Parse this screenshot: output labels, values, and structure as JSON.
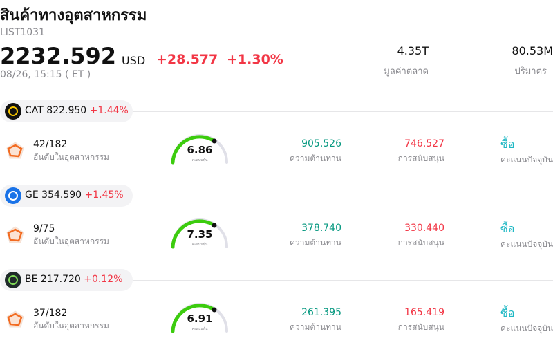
{
  "header": {
    "title": "สินค้าทางอุตสาหกรรม",
    "code": "LIST1031",
    "price": "2232.592",
    "currency": "USD",
    "change": "+28.577",
    "change_pct": "+1.30%",
    "time": "08/26, 15:15 ( ET )"
  },
  "stats": [
    {
      "value": "4.35T",
      "label": "มูลค่าตลาด"
    },
    {
      "value": "80.53M",
      "label": "ปริมาตร"
    }
  ],
  "stocks": [
    {
      "ticker": "CAT",
      "price": "822.950",
      "change": "+1.44%",
      "rank": "42/182",
      "rank_label": "อันดับในอุตสาหกรรม",
      "score": "6.86",
      "score_label": "คะแนนหุ้น",
      "resistance": "905.526",
      "resistance_label": "ความต้านทาน",
      "support": "746.527",
      "support_label": "การสนับสนุน",
      "action": "ซื้อ",
      "action_label": "คะแนนปัจจุบัน"
    },
    {
      "ticker": "GE",
      "price": "354.590",
      "change": "+1.45%",
      "rank": "9/75",
      "rank_label": "อันดับในอุตสาหกรรม",
      "score": "7.35",
      "score_label": "คะแนนหุ้น",
      "resistance": "378.740",
      "resistance_label": "ความต้านทาน",
      "support": "330.440",
      "support_label": "การสนับสนุน",
      "action": "ซื้อ",
      "action_label": "คะแนนปัจจุบัน"
    },
    {
      "ticker": "BE",
      "price": "217.720",
      "change": "+0.12%",
      "rank": "37/182",
      "rank_label": "อันดับในอุตสาหกรรม",
      "score": "6.91",
      "score_label": "คะแนนหุ้น",
      "resistance": "261.395",
      "resistance_label": "ความต้านทาน",
      "support": "165.419",
      "support_label": "การสนับสนุน",
      "action": "ซื้อ",
      "action_label": "คะแนนปัจจุบัน"
    }
  ]
}
